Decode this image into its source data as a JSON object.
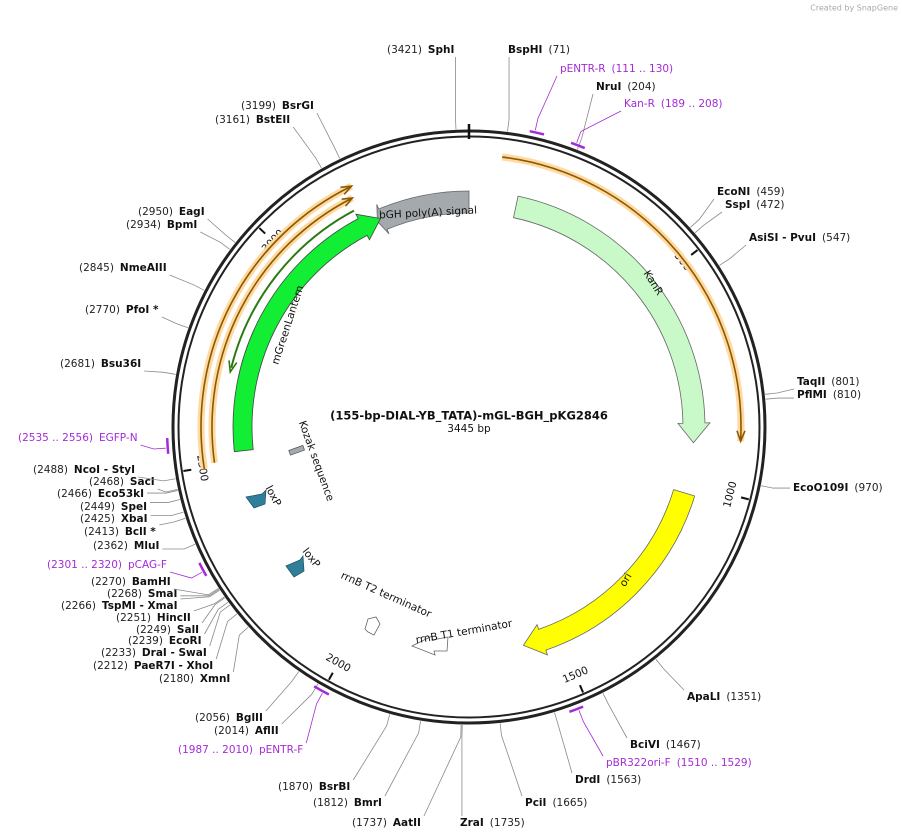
{
  "credit": "Created by SnapGene",
  "map": {
    "title": "(155-bp-DIAL-YB_TATA)-mGL-BGH_pKG2846",
    "length": "3445 bp",
    "tick_labels": [
      "500",
      "1000",
      "1500",
      "2000",
      "2500",
      "3000"
    ],
    "enzymes": [
      {
        "name": "SphI",
        "position": "(3421)"
      },
      {
        "name": "BspHI",
        "position": "(71)"
      },
      {
        "name": "NruI",
        "position": "(204)"
      },
      {
        "name": "EcoNI",
        "position": "(459)"
      },
      {
        "name": "SspI",
        "position": "(472)"
      },
      {
        "name": "AsiSI  - PvuI",
        "position": "(547)"
      },
      {
        "name": "TaqII",
        "position": "(801)"
      },
      {
        "name": "PflMI",
        "position": "(810)"
      },
      {
        "name": "EcoO109I",
        "position": "(970)"
      },
      {
        "name": "ApaLI",
        "position": "(1351)"
      },
      {
        "name": "BciVI",
        "position": "(1467)"
      },
      {
        "name": "DrdI",
        "position": "(1563)"
      },
      {
        "name": "PciI",
        "position": "(1665)"
      },
      {
        "name": "ZraI",
        "position": "(1735)"
      },
      {
        "name": "AatII",
        "position": "(1737)"
      },
      {
        "name": "BmrI",
        "position": "(1812)"
      },
      {
        "name": "BsrBI",
        "position": "(1870)"
      },
      {
        "name": "AflII",
        "position": "(2014)"
      },
      {
        "name": "BglII",
        "position": "(2056)"
      },
      {
        "name": "XmnI",
        "position": "(2180)"
      },
      {
        "name": "PaeR7I  - XhoI",
        "position": "(2212)"
      },
      {
        "name": "DraI  - SwaI",
        "position": "(2233)"
      },
      {
        "name": "EcoRI",
        "position": "(2239)"
      },
      {
        "name": "SalI",
        "position": "(2249)"
      },
      {
        "name": "HincII",
        "position": "(2251)"
      },
      {
        "name": "TspMI  - XmaI",
        "position": "(2266)"
      },
      {
        "name": "SmaI",
        "position": "(2268)"
      },
      {
        "name": "BamHI",
        "position": "(2270)"
      },
      {
        "name": "MluI",
        "position": "(2362)"
      },
      {
        "name": "BclI *",
        "position": "(2413)"
      },
      {
        "name": "XbaI",
        "position": "(2425)"
      },
      {
        "name": "SpeI",
        "position": "(2449)"
      },
      {
        "name": "Eco53kI",
        "position": "(2466)"
      },
      {
        "name": "SacI",
        "position": "(2468)"
      },
      {
        "name": "NcoI  - StyI",
        "position": "(2488)"
      },
      {
        "name": "Bsu36I",
        "position": "(2681)"
      },
      {
        "name": "PfoI *",
        "position": "(2770)"
      },
      {
        "name": "NmeAIII",
        "position": "(2845)"
      },
      {
        "name": "BpmI",
        "position": "(2934)"
      },
      {
        "name": "EagI",
        "position": "(2950)"
      },
      {
        "name": "BstEII",
        "position": "(3161)"
      },
      {
        "name": "BsrGI",
        "position": "(3199)"
      }
    ],
    "primers": [
      {
        "name": "pENTR-R",
        "range": "(111 .. 130)"
      },
      {
        "name": "Kan-R",
        "range": "(189 .. 208)"
      },
      {
        "name": "EGFP-N",
        "range": "(2535 .. 2556)"
      },
      {
        "name": "pCAG-F",
        "range": "(2301 .. 2320)"
      },
      {
        "name": "pENTR-F",
        "range": "(1987 .. 2010)"
      },
      {
        "name": "pBR322ori-F",
        "range": "(1510 .. 1529)"
      }
    ],
    "features": [
      "bGH poly(A) signal",
      "KanR",
      "ori",
      "mGreenLantern",
      "Kozak sequence",
      "loxP",
      "loxP",
      "rrnB T2 terminator",
      "rrnB T1 terminator"
    ]
  }
}
